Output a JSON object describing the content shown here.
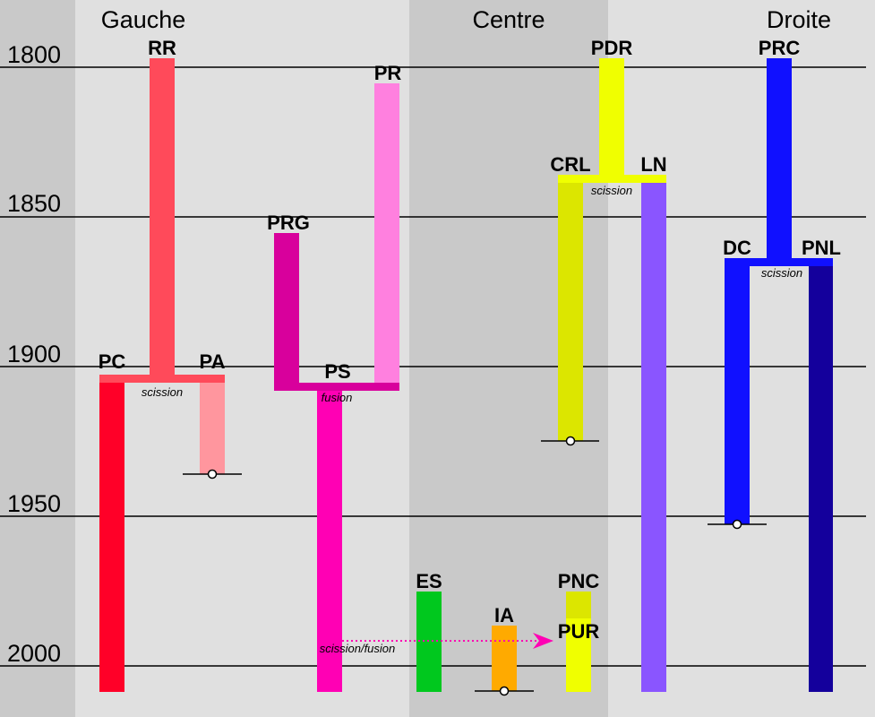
{
  "regions": {
    "left": "Gauche",
    "center": "Centre",
    "right": "Droite"
  },
  "years": [
    "1800",
    "1850",
    "1900",
    "1950",
    "2000"
  ],
  "parties": {
    "rr": "RR",
    "pc": "PC",
    "pa": "PA",
    "prg": "PRG",
    "pr": "PR",
    "ps": "PS",
    "es": "ES",
    "ia": "IA",
    "pdr": "PDR",
    "crl": "CRL",
    "ln": "LN",
    "pnc": "PNC",
    "pur": "PUR",
    "prc": "PRC",
    "dc": "DC",
    "pnl": "PNL"
  },
  "notes": {
    "scission_left": "scission",
    "fusion_ps": "fusion",
    "scission_center": "scission",
    "scission_right": "scission",
    "scission_fusion": "scission/fusion"
  },
  "colors": {
    "axis_band": "#c9c9c9",
    "center_band": "#c9c9c9",
    "rr": "#ff4a5a",
    "pc": "#ff0028",
    "pa": "#ff969e",
    "prg": "#d8009c",
    "pr": "#ff80df",
    "ps": "#ff00b4",
    "es": "#00c81e",
    "ia": "#ffaa00",
    "pdr": "#f0ff00",
    "crl": "#dce600",
    "ln": "#8a55ff",
    "pnc": "#dce600",
    "pur": "#f0ff00",
    "prc": "#1010ff",
    "dc": "#1010ff",
    "pnl": "#14009c",
    "arrow": "#ff00b4"
  }
}
